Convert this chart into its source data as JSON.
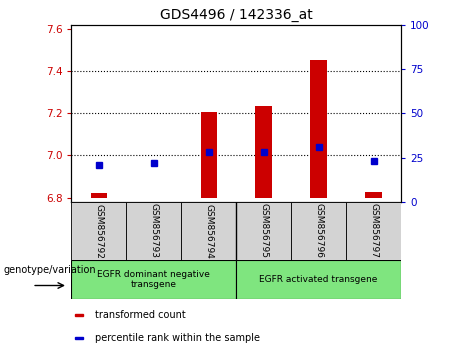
{
  "title": "GDS4496 / 142336_at",
  "samples": [
    "GSM856792",
    "GSM856793",
    "GSM856794",
    "GSM856795",
    "GSM856796",
    "GSM856797"
  ],
  "transformed_counts": [
    6.82,
    6.795,
    7.205,
    7.235,
    7.455,
    6.825
  ],
  "percentile_ranks": [
    21,
    22,
    28,
    28,
    31,
    23
  ],
  "bar_bottom": 6.8,
  "ylim_left": [
    6.78,
    7.62
  ],
  "ylim_right": [
    0,
    100
  ],
  "yticks_left": [
    6.8,
    7.0,
    7.2,
    7.4,
    7.6
  ],
  "yticks_right": [
    0,
    25,
    50,
    75,
    100
  ],
  "group1_label": "EGFR dominant negative\ntransgene",
  "group2_label": "EGFR activated transgene",
  "group_color": "#7FE57F",
  "bar_color": "#cc0000",
  "dot_color": "#0000cc",
  "bar_width": 0.3,
  "background_color": "#ffffff",
  "left_tick_color": "#cc0000",
  "right_tick_color": "#0000cc",
  "xlabel_genotype": "genotype/variation",
  "legend_items": [
    {
      "label": "transformed count",
      "color": "#cc0000"
    },
    {
      "label": "percentile rank within the sample",
      "color": "#0000cc"
    }
  ],
  "gridline_color": "black",
  "gridline_ticks": [
    7.0,
    7.2,
    7.4
  ]
}
